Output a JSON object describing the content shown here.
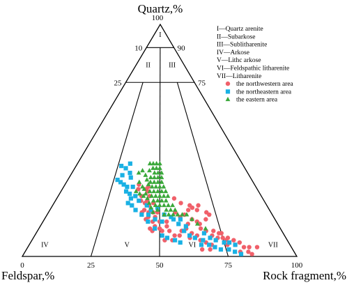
{
  "chart_data": {
    "type": "scatter",
    "subtype": "ternary",
    "axes": {
      "top": "Quartz,%",
      "left": "Feldspar,%",
      "right": "Rock fragment,%",
      "range": [
        0,
        100
      ]
    },
    "tick_labels": {
      "top_vertex": "100",
      "bottom": [
        "0",
        "25",
        "50",
        "75",
        "100"
      ],
      "left_edge": [
        "10",
        "25"
      ],
      "right_edge": [
        "90",
        "75"
      ]
    },
    "zones": [
      {
        "id": "I",
        "name": "Quartz arenite"
      },
      {
        "id": "II",
        "name": "Subarkose"
      },
      {
        "id": "III",
        "name": "Sublitharenite"
      },
      {
        "id": "IV",
        "name": "Arkose"
      },
      {
        "id": "V",
        "name": "Lithc arkose"
      },
      {
        "id": "VI",
        "name": "Feldspathic litharenite"
      },
      {
        "id": "VII",
        "name": "Litharenite"
      }
    ],
    "legend_position": "top-right",
    "series": [
      {
        "name": "the northwestern area",
        "marker": "circle",
        "color": "#f0606a",
        "points": [
          [
            39,
            31
          ],
          [
            39,
            29
          ],
          [
            43,
            29
          ],
          [
            44,
            28
          ],
          [
            44,
            30
          ],
          [
            41,
            26
          ],
          [
            45,
            26
          ],
          [
            41,
            24
          ],
          [
            44,
            24
          ],
          [
            43,
            23
          ],
          [
            47,
            23
          ],
          [
            45,
            22
          ],
          [
            43,
            20
          ],
          [
            42,
            19
          ],
          [
            45,
            19
          ],
          [
            47,
            19
          ],
          [
            49,
            19
          ],
          [
            45,
            17
          ],
          [
            48,
            17
          ],
          [
            44,
            16
          ],
          [
            47,
            15
          ],
          [
            50,
            15
          ],
          [
            48,
            13
          ],
          [
            46,
            12
          ],
          [
            50,
            12
          ],
          [
            47,
            11
          ],
          [
            51,
            11
          ],
          [
            57,
            25
          ],
          [
            60,
            23
          ],
          [
            57,
            19
          ],
          [
            61,
            18
          ],
          [
            59,
            17
          ],
          [
            53,
            15
          ],
          [
            53,
            13
          ],
          [
            54,
            11
          ],
          [
            56,
            9
          ],
          [
            58,
            9
          ],
          [
            65,
            21
          ],
          [
            67,
            20
          ],
          [
            71,
            19
          ],
          [
            72,
            18
          ],
          [
            70,
            16
          ],
          [
            67,
            14
          ],
          [
            67,
            12
          ],
          [
            69,
            11
          ],
          [
            72,
            11
          ],
          [
            74,
            10
          ],
          [
            71,
            9
          ],
          [
            75,
            10
          ],
          [
            73,
            8
          ],
          [
            75,
            8
          ],
          [
            77,
            8
          ],
          [
            76,
            7
          ],
          [
            79,
            7
          ],
          [
            77,
            6
          ],
          [
            81,
            6
          ],
          [
            79,
            5
          ],
          [
            82,
            4
          ],
          [
            84,
            4
          ],
          [
            83,
            2
          ],
          [
            80,
            2
          ],
          [
            84,
            1
          ],
          [
            76,
            5
          ],
          [
            87,
            4
          ],
          [
            64,
            16
          ],
          [
            66,
            15
          ],
          [
            62,
            14
          ],
          [
            61,
            12
          ],
          [
            59,
            11
          ],
          [
            63,
            10
          ],
          [
            65,
            9
          ],
          [
            62,
            8
          ],
          [
            66,
            7
          ],
          [
            68,
            6
          ],
          [
            55,
            7
          ],
          [
            52,
            7
          ],
          [
            70,
            5
          ],
          [
            69,
            3
          ],
          [
            66,
            3
          ],
          [
            64,
            22
          ],
          [
            68,
            22
          ],
          [
            63,
            20
          ]
        ]
      },
      {
        "name": "the northeastern area",
        "marker": "square",
        "color": "#1ab1e4",
        "points": [
          [
            32,
            40
          ],
          [
            30,
            38
          ],
          [
            33,
            36
          ],
          [
            29,
            35
          ],
          [
            27,
            33
          ],
          [
            29,
            32
          ],
          [
            31,
            31
          ],
          [
            33,
            30
          ],
          [
            33,
            28
          ],
          [
            35,
            27
          ],
          [
            36,
            25
          ],
          [
            35,
            23
          ],
          [
            37,
            22
          ],
          [
            39,
            20
          ],
          [
            42,
            18
          ],
          [
            45,
            18
          ],
          [
            48,
            16
          ],
          [
            51,
            15
          ],
          [
            52,
            18
          ],
          [
            55,
            17
          ],
          [
            56,
            16
          ],
          [
            59,
            16
          ],
          [
            58,
            14
          ],
          [
            61,
            13
          ],
          [
            60,
            11
          ],
          [
            62,
            9
          ],
          [
            64,
            8
          ],
          [
            67,
            7
          ],
          [
            66,
            5
          ],
          [
            69,
            5
          ],
          [
            71,
            4
          ],
          [
            73,
            3
          ],
          [
            76,
            3
          ],
          [
            78,
            2
          ],
          [
            80,
            1
          ],
          [
            68,
            10
          ],
          [
            70,
            8
          ],
          [
            72,
            7
          ],
          [
            75,
            6
          ],
          [
            77,
            6
          ],
          [
            79,
            5
          ],
          [
            46,
            20
          ],
          [
            49,
            21
          ],
          [
            45,
            15
          ],
          [
            48,
            12
          ],
          [
            51,
            9
          ],
          [
            53,
            8
          ],
          [
            56,
            7
          ],
          [
            58,
            6
          ],
          [
            27,
            39
          ],
          [
            34,
            34
          ],
          [
            38,
            26
          ],
          [
            40,
            24
          ],
          [
            44,
            22
          ],
          [
            36,
            30
          ]
        ]
      },
      {
        "name": "the eastern area",
        "marker": "triangle",
        "color": "#3aa83a",
        "points": [
          [
            44,
            40
          ],
          [
            46,
            40
          ],
          [
            48,
            40
          ],
          [
            50,
            40
          ],
          [
            46,
            38
          ],
          [
            48,
            38
          ],
          [
            50,
            38
          ],
          [
            44,
            37
          ],
          [
            47,
            36
          ],
          [
            49,
            36
          ],
          [
            51,
            36
          ],
          [
            45,
            34
          ],
          [
            47,
            34
          ],
          [
            49,
            34
          ],
          [
            51,
            34
          ],
          [
            43,
            33
          ],
          [
            45,
            32
          ],
          [
            47,
            32
          ],
          [
            49,
            32
          ],
          [
            51,
            32
          ],
          [
            44,
            31
          ],
          [
            46,
            30
          ],
          [
            48,
            30
          ],
          [
            50,
            30
          ],
          [
            52,
            30
          ],
          [
            42,
            29
          ],
          [
            45,
            28
          ],
          [
            47,
            28
          ],
          [
            49,
            28
          ],
          [
            51,
            28
          ],
          [
            53,
            28
          ],
          [
            43,
            27
          ],
          [
            46,
            26
          ],
          [
            48,
            26
          ],
          [
            50,
            26
          ],
          [
            52,
            26
          ],
          [
            54,
            26
          ],
          [
            44,
            25
          ],
          [
            47,
            24
          ],
          [
            49,
            24
          ],
          [
            51,
            24
          ],
          [
            53,
            24
          ],
          [
            45,
            23
          ],
          [
            48,
            22
          ],
          [
            50,
            22
          ],
          [
            52,
            22
          ],
          [
            54,
            22
          ],
          [
            56,
            22
          ],
          [
            46,
            21
          ],
          [
            49,
            20
          ],
          [
            53,
            20
          ],
          [
            55,
            20
          ],
          [
            57,
            20
          ],
          [
            47,
            19
          ],
          [
            52,
            18
          ],
          [
            54,
            18
          ],
          [
            56,
            18
          ],
          [
            58,
            18
          ],
          [
            60,
            18
          ],
          [
            62,
            18
          ],
          [
            64,
            16
          ],
          [
            66,
            14
          ],
          [
            69,
            12
          ],
          [
            42,
            26
          ],
          [
            40,
            27
          ],
          [
            38,
            28
          ],
          [
            41,
            30
          ],
          [
            39,
            32
          ],
          [
            42,
            35
          ],
          [
            40,
            37
          ],
          [
            38,
            36
          ]
        ]
      }
    ]
  }
}
